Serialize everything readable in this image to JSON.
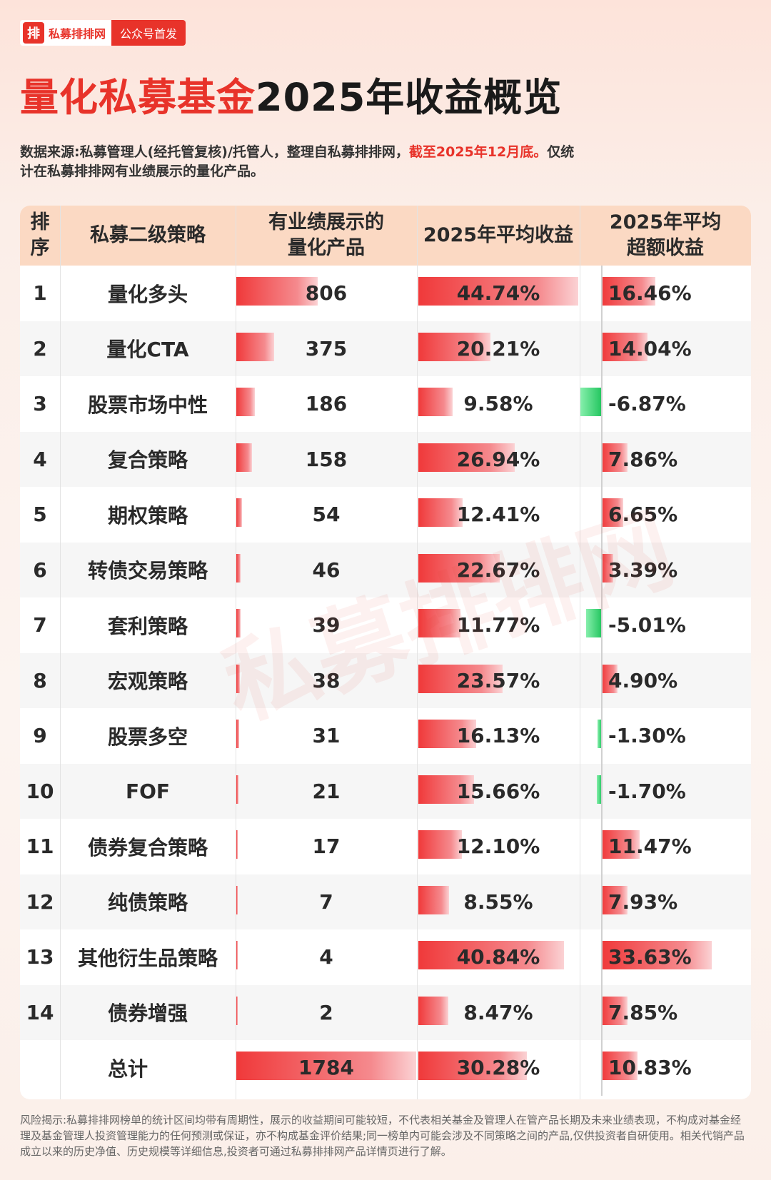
{
  "brand": {
    "logo_char": "排",
    "name": "私募排排网",
    "tag": "公众号首发"
  },
  "title": {
    "red_part": "量化私募基金",
    "dark_part": "2025年收益概览"
  },
  "source": {
    "text": "数据来源:私募管理人(经托管复核)/托管人，整理自私募排排网，",
    "highlight": "截至2025年12月底。",
    "text2": "仅统计在私募排排网有业绩展示的量化产品。"
  },
  "watermark": "私募排排网",
  "colors": {
    "accent": "#e8332a",
    "header_bg": "#fbd9c3",
    "positive_bar": "#f0393a",
    "negative_bar": "#22c55e"
  },
  "chart_data": {
    "type": "table",
    "columns": [
      "排序",
      "私募二级策略",
      "有业绩展示的量化产品",
      "2025年平均收益",
      "2025年平均超额收益"
    ],
    "column_labels": {
      "rank": [
        "排",
        "序"
      ],
      "strategy": [
        "私募二级策略"
      ],
      "count": [
        "有业绩展示的",
        "量化产品"
      ],
      "return": [
        "2025年平均收益"
      ],
      "excess": [
        "2025年平均",
        "超额收益"
      ]
    },
    "rows": [
      {
        "rank": "1",
        "strategy": "量化多头",
        "count": 806,
        "return": 44.74,
        "excess": 16.46,
        "return_label": "44.74%",
        "excess_label": "16.46%"
      },
      {
        "rank": "2",
        "strategy": "量化CTA",
        "count": 375,
        "return": 20.21,
        "excess": 14.04,
        "return_label": "20.21%",
        "excess_label": "14.04%"
      },
      {
        "rank": "3",
        "strategy": "股票市场中性",
        "count": 186,
        "return": 9.58,
        "excess": -6.87,
        "return_label": "9.58%",
        "excess_label": "-6.87%"
      },
      {
        "rank": "4",
        "strategy": "复合策略",
        "count": 158,
        "return": 26.94,
        "excess": 7.86,
        "return_label": "26.94%",
        "excess_label": "7.86%"
      },
      {
        "rank": "5",
        "strategy": "期权策略",
        "count": 54,
        "return": 12.41,
        "excess": 6.65,
        "return_label": "12.41%",
        "excess_label": "6.65%"
      },
      {
        "rank": "6",
        "strategy": "转债交易策略",
        "count": 46,
        "return": 22.67,
        "excess": 3.39,
        "return_label": "22.67%",
        "excess_label": "3.39%"
      },
      {
        "rank": "7",
        "strategy": "套利策略",
        "count": 39,
        "return": 11.77,
        "excess": -5.01,
        "return_label": "11.77%",
        "excess_label": "-5.01%"
      },
      {
        "rank": "8",
        "strategy": "宏观策略",
        "count": 38,
        "return": 23.57,
        "excess": 4.9,
        "return_label": "23.57%",
        "excess_label": "4.90%"
      },
      {
        "rank": "9",
        "strategy": "股票多空",
        "count": 31,
        "return": 16.13,
        "excess": -1.3,
        "return_label": "16.13%",
        "excess_label": "-1.30%"
      },
      {
        "rank": "10",
        "strategy": "FOF",
        "count": 21,
        "return": 15.66,
        "excess": -1.7,
        "return_label": "15.66%",
        "excess_label": "-1.70%"
      },
      {
        "rank": "11",
        "strategy": "债券复合策略",
        "count": 17,
        "return": 12.1,
        "excess": 11.47,
        "return_label": "12.10%",
        "excess_label": "11.47%"
      },
      {
        "rank": "12",
        "strategy": "纯债策略",
        "count": 7,
        "return": 8.55,
        "excess": 7.93,
        "return_label": "8.55%",
        "excess_label": "7.93%"
      },
      {
        "rank": "13",
        "strategy": "其他衍生品策略",
        "count": 4,
        "return": 40.84,
        "excess": 33.63,
        "return_label": "40.84%",
        "excess_label": "33.63%"
      },
      {
        "rank": "14",
        "strategy": "债券增强",
        "count": 2,
        "return": 8.47,
        "excess": 7.85,
        "return_label": "8.47%",
        "excess_label": "7.85%"
      }
    ],
    "total": {
      "label": "总计",
      "count": 1784,
      "return": 30.28,
      "excess": 10.83,
      "return_label": "30.28%",
      "excess_label": "10.83%"
    }
  },
  "disclaimer": "风险揭示:私募排排网榜单的统计区间均带有周期性，展示的收益期间可能较短，不代表相关基金及管理人在管产品长期及未来业绩表现，不构成对基金经理及基金管理人投资管理能力的任何预测或保证，亦不构成基金评价结果;同一榜单内可能会涉及不同策略之间的产品,仅供投资者自研使用。相关代销产品成立以来的历史净值、历史规模等详细信息,投资者可通过私募排排网产品详情页进行了解。"
}
